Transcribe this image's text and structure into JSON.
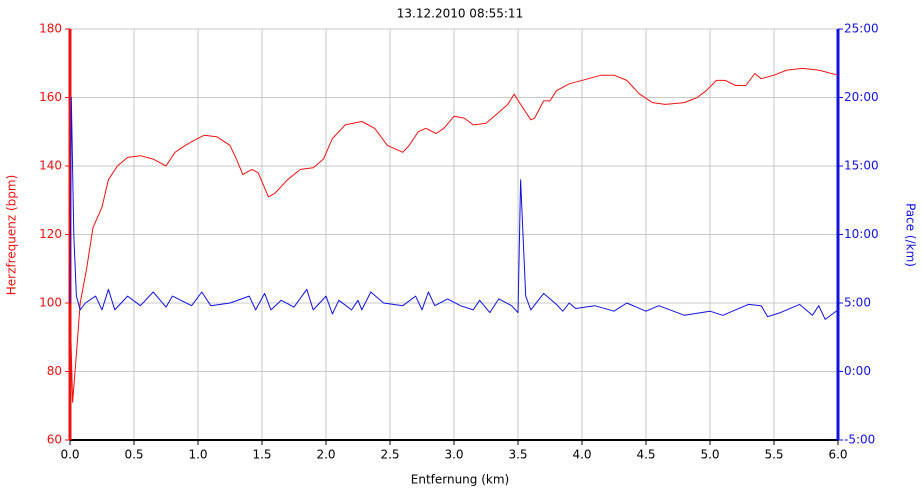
{
  "chart_data": {
    "type": "line",
    "title": "13.12.2010 08:55:11",
    "xlabel": "Entfernung (km)",
    "ylabel": "Herzfrequenz (bpm)",
    "y2label": "Pace (/km)",
    "xlim": [
      0,
      6
    ],
    "ylim": [
      60,
      180
    ],
    "y2lim": [
      -5,
      25
    ],
    "xticks": [
      {
        "value": 0,
        "label": "0.0"
      },
      0.5,
      {
        "value": 1,
        "label": "1.0"
      },
      1.5,
      {
        "value": 2,
        "label": "2.0"
      },
      2.5,
      {
        "value": 3,
        "label": "3.0"
      },
      3.5,
      {
        "value": 4,
        "label": "4.0"
      },
      4.5,
      {
        "value": 5,
        "label": "5.0"
      },
      5.5,
      {
        "value": 6,
        "label": "6.0"
      }
    ],
    "yticks": [
      60,
      80,
      100,
      120,
      140,
      160,
      180
    ],
    "y2ticks": [
      {
        "value": -5,
        "label": "-5:00"
      },
      {
        "value": 0,
        "label": "0:00"
      },
      {
        "value": 5,
        "label": "5:00"
      },
      {
        "value": 10,
        "label": "10:00"
      },
      {
        "value": 15,
        "label": "15:00"
      },
      {
        "value": 20,
        "label": "20:00"
      },
      {
        "value": 25,
        "label": "25:00"
      }
    ],
    "grid": true,
    "series": [
      {
        "color": "#ee1111",
        "axis": "y",
        "x": [
          0.0,
          0.02,
          0.05,
          0.08,
          0.13,
          0.18,
          0.25,
          0.3,
          0.37,
          0.45,
          0.55,
          0.65,
          0.75,
          0.82,
          0.9,
          0.97,
          1.05,
          1.15,
          1.25,
          1.3,
          1.35,
          1.42,
          1.47,
          1.55,
          1.6,
          1.7,
          1.8,
          1.9,
          1.98,
          2.05,
          2.15,
          2.28,
          2.38,
          2.48,
          2.6,
          2.65,
          2.72,
          2.78,
          2.86,
          2.92,
          3.0,
          3.08,
          3.15,
          3.25,
          3.33,
          3.42,
          3.47,
          3.52,
          3.6,
          3.63,
          3.7,
          3.75,
          3.8,
          3.9,
          4.05,
          4.15,
          4.25,
          4.35,
          4.45,
          4.55,
          4.65,
          4.8,
          4.9,
          4.97,
          5.05,
          5.12,
          5.2,
          5.28,
          5.35,
          5.4,
          5.5,
          5.6,
          5.72,
          5.85,
          6.0
        ],
        "values": [
          100,
          71,
          85,
          100,
          110,
          122,
          128,
          136,
          140,
          142.5,
          143,
          142,
          140,
          144,
          146,
          147.5,
          149,
          148.5,
          146,
          142,
          137.5,
          139,
          138,
          131,
          132,
          136,
          139,
          139.5,
          142,
          148,
          152,
          153,
          151,
          146,
          144,
          146,
          150,
          151,
          149.5,
          151,
          154.5,
          154,
          152,
          152.5,
          155,
          158,
          161,
          158,
          153.5,
          154,
          159,
          159,
          162,
          164,
          165.5,
          166.5,
          166.5,
          165,
          161,
          158.5,
          158,
          158.5,
          160,
          162,
          165,
          165,
          163.5,
          163.5,
          167,
          165.5,
          166.5,
          168,
          168.5,
          168,
          166.5
        ]
      },
      {
        "color": "#1111dd",
        "axis": "y2",
        "x": [
          0.0,
          0.01,
          0.03,
          0.05,
          0.08,
          0.12,
          0.2,
          0.25,
          0.3,
          0.35,
          0.45,
          0.55,
          0.65,
          0.75,
          0.8,
          0.95,
          1.03,
          1.1,
          1.25,
          1.4,
          1.45,
          1.52,
          1.57,
          1.65,
          1.75,
          1.85,
          1.9,
          2.0,
          2.05,
          2.1,
          2.2,
          2.25,
          2.28,
          2.35,
          2.45,
          2.6,
          2.7,
          2.75,
          2.8,
          2.85,
          2.95,
          3.05,
          3.15,
          3.2,
          3.28,
          3.35,
          3.45,
          3.5,
          3.52,
          3.56,
          3.6,
          3.7,
          3.8,
          3.85,
          3.9,
          3.95,
          4.1,
          4.25,
          4.35,
          4.5,
          4.6,
          4.8,
          5.0,
          5.1,
          5.3,
          5.4,
          5.45,
          5.55,
          5.7,
          5.8,
          5.85,
          5.9,
          6.0
        ],
        "values": [
          5,
          20,
          10,
          5.5,
          4.5,
          5,
          5.5,
          4.5,
          6,
          4.5,
          5.5,
          4.8,
          5.8,
          4.7,
          5.5,
          4.8,
          5.8,
          4.8,
          5,
          5.5,
          4.5,
          5.7,
          4.5,
          5.2,
          4.7,
          6,
          4.5,
          5.5,
          4.2,
          5.2,
          4.5,
          5.2,
          4.5,
          5.8,
          5,
          4.8,
          5.5,
          4.5,
          5.8,
          4.8,
          5.3,
          4.8,
          4.5,
          5.2,
          4.3,
          5.3,
          4.8,
          4.3,
          14,
          5.5,
          4.5,
          5.7,
          4.9,
          4.4,
          5,
          4.6,
          4.8,
          4.4,
          5,
          4.4,
          4.8,
          4.1,
          4.4,
          4.1,
          4.9,
          4.8,
          4,
          4.3,
          4.9,
          4.1,
          4.8,
          3.8,
          4.5
        ]
      }
    ]
  }
}
